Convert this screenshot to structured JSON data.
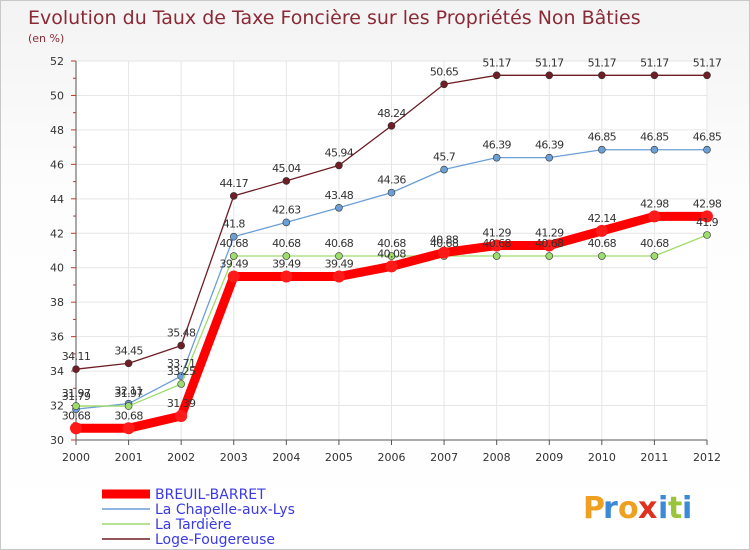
{
  "chart_data": {
    "type": "line",
    "title": "Evolution du Taux de Taxe Foncière sur les Propriétés Non Bâties",
    "subtitle": "(en %)",
    "xlabel": "",
    "ylabel": "",
    "ylim": [
      30,
      52
    ],
    "yticks": [
      30,
      32,
      34,
      36,
      38,
      40,
      42,
      44,
      46,
      48,
      50,
      52
    ],
    "categories": [
      "2000",
      "2001",
      "2002",
      "2003",
      "2004",
      "2005",
      "2006",
      "2007",
      "2008",
      "2009",
      "2010",
      "2011",
      "2012"
    ],
    "grid": true,
    "legend_position": "bottom-left",
    "series": [
      {
        "name": "Loge-Fougereuse",
        "color": "#6e1e24",
        "values": [
          34.11,
          34.45,
          35.48,
          44.17,
          45.04,
          45.94,
          48.24,
          50.65,
          51.17,
          51.17,
          51.17,
          51.17,
          51.17
        ],
        "labels": [
          "34.11",
          "34.45",
          "35.48",
          "44.17",
          "45.04",
          "45.94",
          "48.24",
          "50.65",
          "51.17",
          "51.17",
          "51.17",
          "51.17",
          "51.17"
        ]
      },
      {
        "name": "La Chapelle-aux-Lys",
        "color": "#6c9fd6",
        "values": [
          31.79,
          32.11,
          33.71,
          41.8,
          42.63,
          43.48,
          44.36,
          45.7,
          46.39,
          46.39,
          46.85,
          46.85,
          46.85
        ],
        "labels": [
          "31.79",
          "32.11",
          "33.71",
          "41.8",
          "42.63",
          "43.48",
          "44.36",
          "45.7",
          "46.39",
          "46.39",
          "46.85",
          "46.85",
          "46.85"
        ]
      },
      {
        "name": "La Tardière",
        "color": "#9fdc6e",
        "values": [
          31.97,
          31.97,
          33.25,
          40.68,
          40.68,
          40.68,
          40.68,
          40.68,
          40.68,
          40.68,
          40.68,
          40.68,
          41.9
        ],
        "labels": [
          "31.97",
          "31.97",
          "33.25",
          "40.68",
          "40.68",
          "40.68",
          "40.68",
          "40.68",
          "40.68",
          "40.68",
          "40.68",
          "40.68",
          "41.9"
        ]
      },
      {
        "name": "BREUIL-BARRET",
        "color": "#ff0000",
        "values": [
          30.68,
          30.68,
          31.39,
          39.49,
          39.49,
          39.49,
          40.08,
          40.88,
          41.29,
          41.29,
          42.14,
          42.98,
          42.98
        ],
        "labels": [
          "30.68",
          "30.68",
          "31.39",
          "39.49",
          "39.49",
          "39.49",
          "40.08",
          "40.88",
          "41.29",
          "41.29",
          "42.14",
          "42.98",
          "42.98"
        ]
      }
    ],
    "legend_order": [
      "BREUIL-BARRET",
      "La Chapelle-aux-Lys",
      "La Tardière",
      "Loge-Fougereuse"
    ],
    "legend_colors": {
      "BREUIL-BARRET": "#ff0000",
      "La Chapelle-aux-Lys": "#6c9fd6",
      "La Tardière": "#9fdc6e",
      "Loge-Fougereuse": "#6e1e24"
    },
    "legend_text_color": "#3a3ae6"
  },
  "logo": {
    "letters": [
      "P",
      "r",
      "o",
      "x",
      "i",
      "t",
      "i"
    ],
    "colors": [
      "#f0a020",
      "#3a8ad8",
      "#f0a020",
      "#e03020",
      "#3a8ad8",
      "#9ac43a",
      "#3a8ad8"
    ]
  }
}
